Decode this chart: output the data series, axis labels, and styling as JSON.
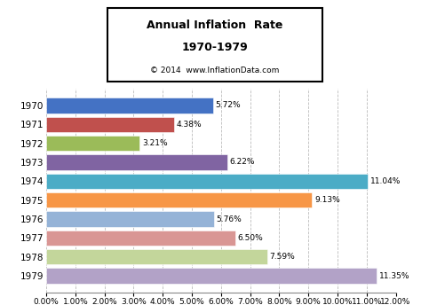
{
  "years": [
    "1970",
    "1971",
    "1972",
    "1973",
    "1974",
    "1975",
    "1976",
    "1977",
    "1978",
    "1979"
  ],
  "values": [
    5.72,
    4.38,
    3.21,
    6.22,
    11.04,
    9.13,
    5.76,
    6.5,
    7.59,
    11.35
  ],
  "labels": [
    "5.72%",
    "4.38%",
    "3.21%",
    "6.22%",
    "11.04%",
    "9.13%",
    "5.76%",
    "6.50%",
    "7.59%",
    "11.35%"
  ],
  "bar_colors": [
    "#4472C4",
    "#C0504D",
    "#9BBB59",
    "#8064A2",
    "#4BACC6",
    "#F79646",
    "#95B3D7",
    "#D99694",
    "#C3D69B",
    "#B2A2C7"
  ],
  "title_line1": "Annual Inflation  Rate",
  "title_line2": "1970-1979",
  "title_line3": "© 2014  www.InflationData.com",
  "xlim": [
    0,
    12
  ],
  "xticks": [
    0,
    1,
    2,
    3,
    4,
    5,
    6,
    7,
    8,
    9,
    10,
    11,
    12
  ],
  "xtick_labels": [
    "0.00%",
    "1.00%",
    "2.00%",
    "3.00%",
    "4.00%",
    "5.00%",
    "6.00%",
    "7.00%",
    "8.00%",
    "9.00%",
    "10.00%",
    "11.00%",
    "12.00%"
  ],
  "bg_color": "#FFFFFF",
  "plot_bg_color": "#FFFFFF",
  "grid_color": "#BBBBBB"
}
